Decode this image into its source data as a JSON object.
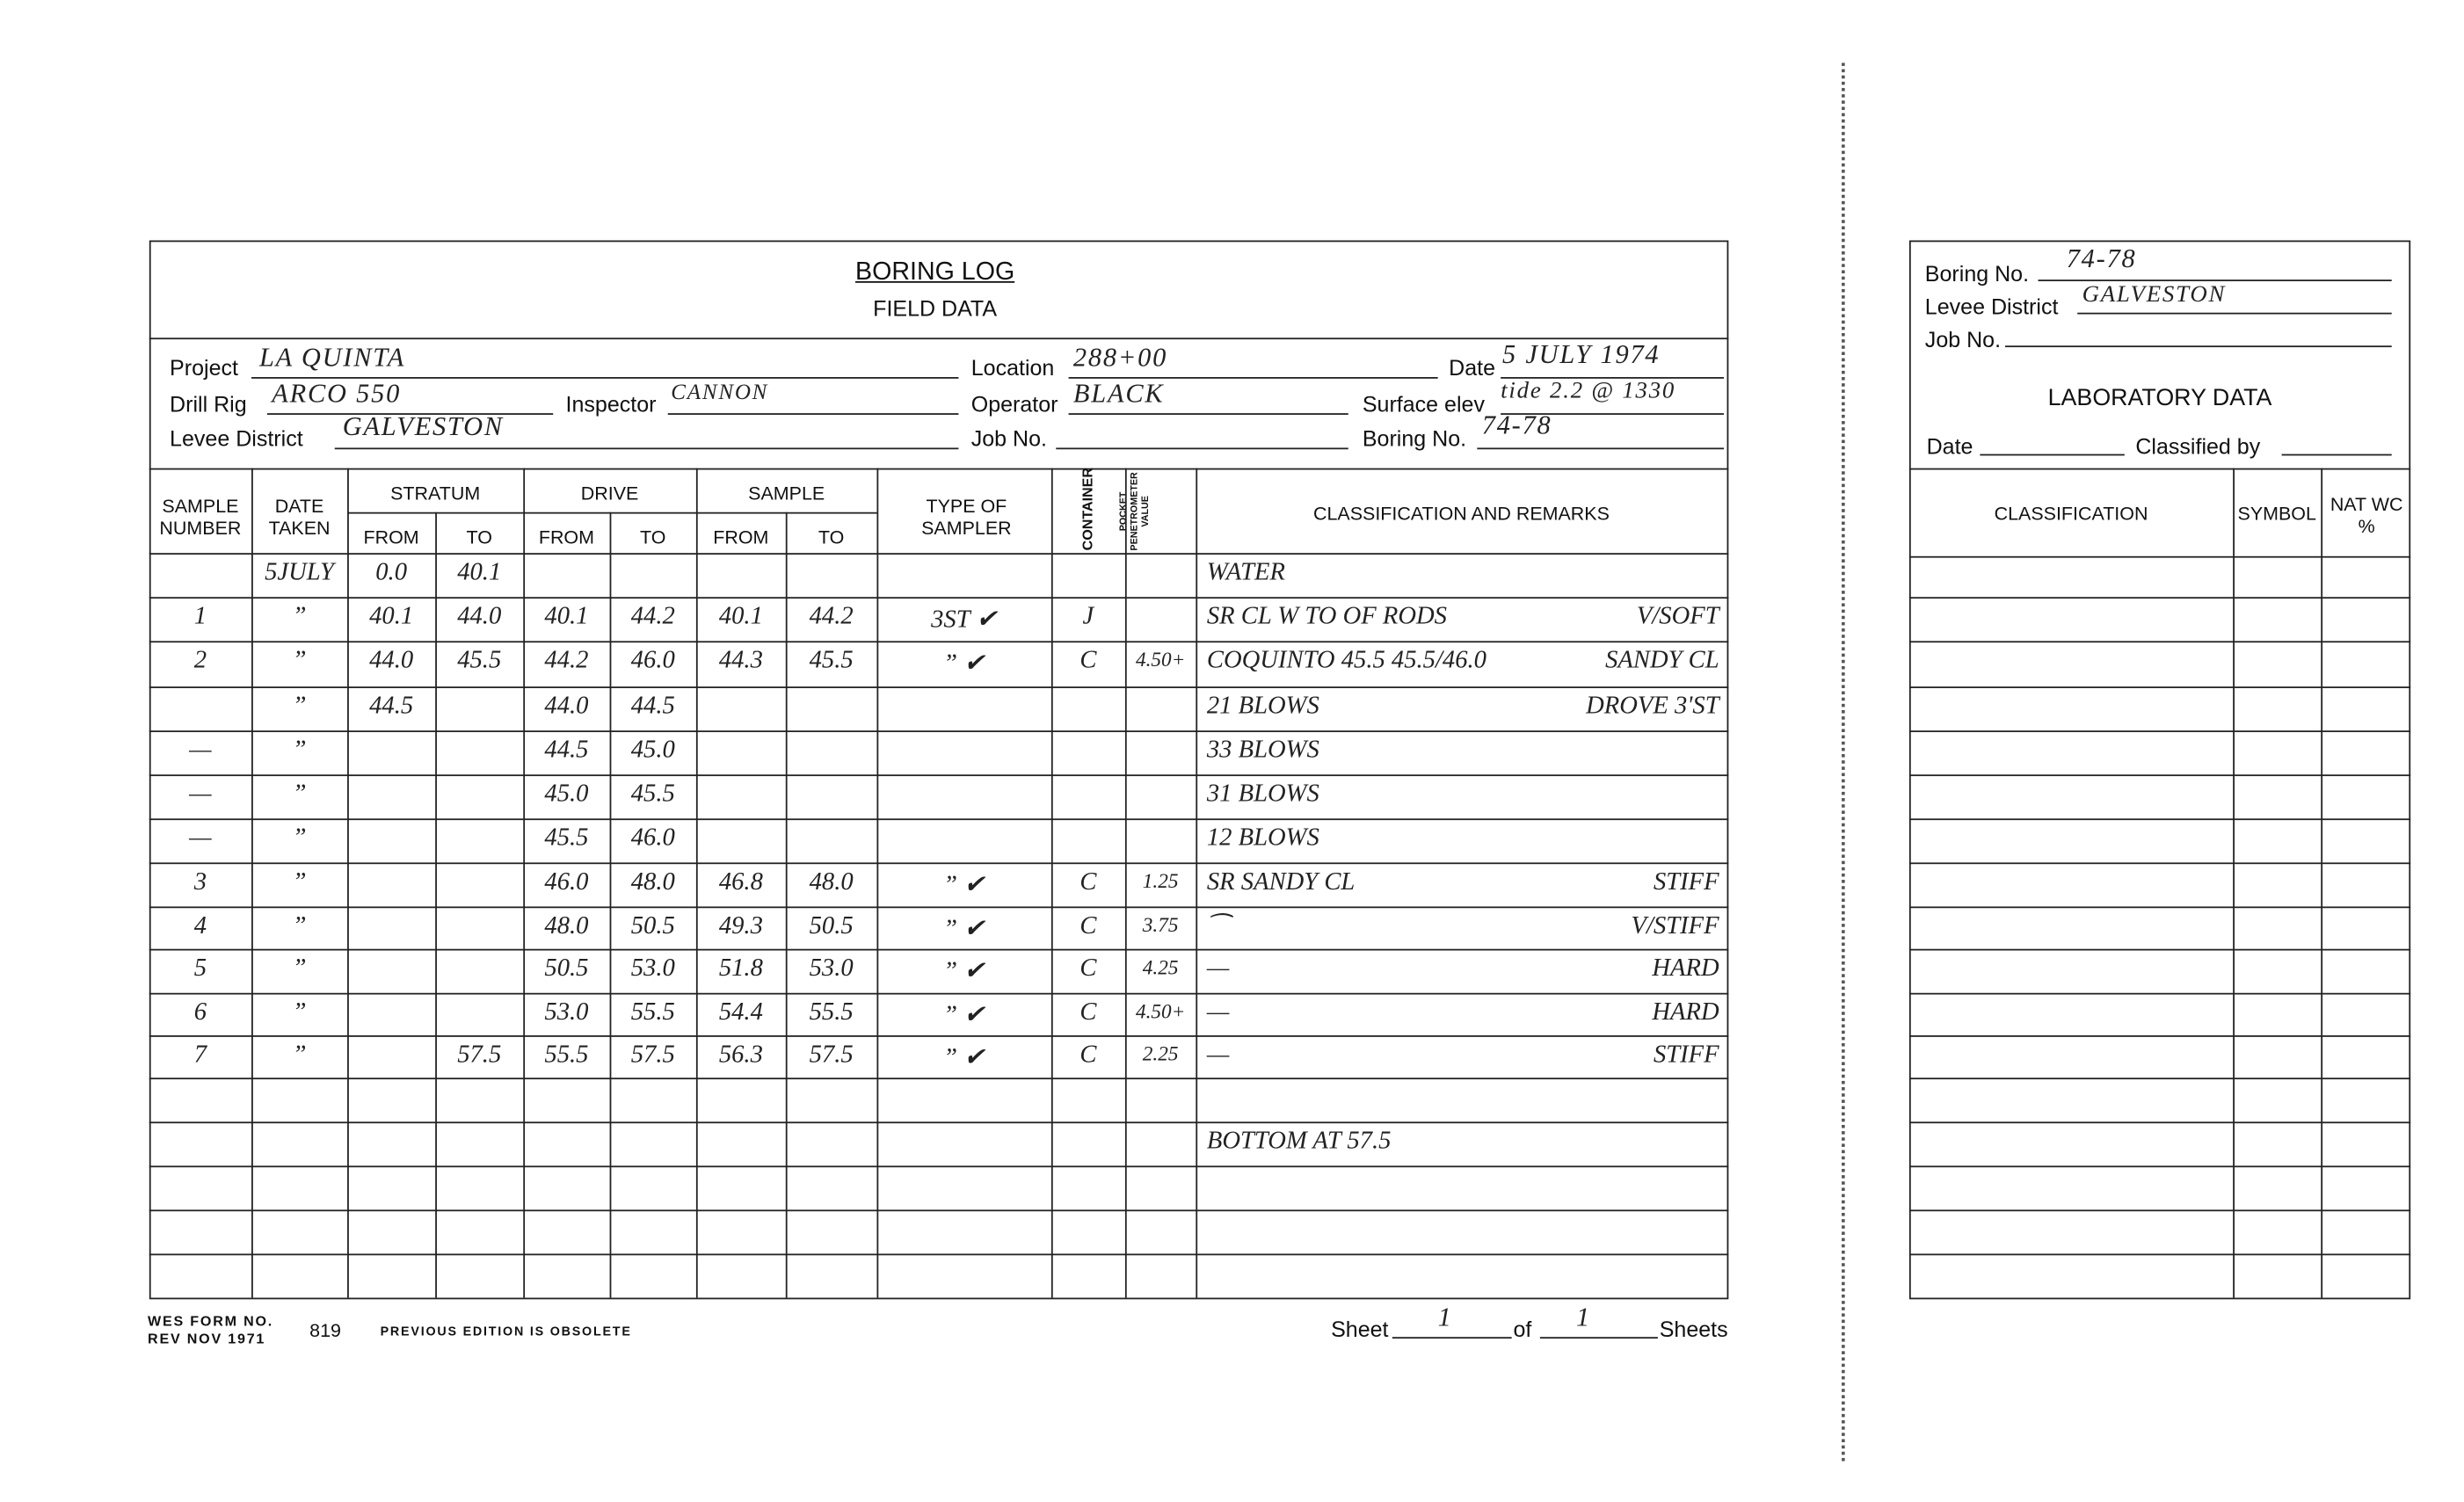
{
  "field": {
    "title": "BORING LOG",
    "subtitle": "FIELD DATA",
    "project_label": "Project",
    "project": "LA QUINTA",
    "location_label": "Location",
    "location": "288+00",
    "date_label": "Date",
    "date": "5 JULY 1974",
    "drill_rig_label": "Drill Rig",
    "drill_rig": "ARCO 550",
    "inspector_label": "Inspector",
    "inspector": "CANNON",
    "operator_label": "Operator",
    "operator": "BLACK",
    "surface_elev_label": "Surface elev",
    "surface_elev": "tide 2.2 @ 1330",
    "levee_label": "Levee District",
    "levee": "GALVESTON",
    "job_label": "Job No.",
    "job": "",
    "boring_label": "Boring No.",
    "boring": "74-78",
    "headers": {
      "sample_number": "SAMPLE NUMBER",
      "date_taken": "DATE TAKEN",
      "stratum": "STRATUM",
      "drive": "DRIVE",
      "sample": "SAMPLE",
      "from": "FROM",
      "to": "TO",
      "type_of_sampler": "TYPE OF SAMPLER",
      "container": "CONTAINER",
      "pocket_pen": "POCKET PENETROMETER VALUE",
      "classification": "CLASSIFICATION AND REMARKS"
    },
    "rows": [
      {
        "c": [
          "",
          "5JULY",
          "0.0",
          "40.1",
          "",
          "",
          "",
          "",
          "",
          "",
          ""
        ],
        "rl": "WATER",
        "rr": ""
      },
      {
        "c": [
          "1",
          "”",
          "40.1",
          "44.0",
          "40.1",
          "44.2",
          "40.1",
          "44.2",
          "3ST ✔",
          "J",
          ""
        ],
        "rl": "SR CL W TO OF RODS",
        "rr": "V/SOFT"
      },
      {
        "c": [
          "2",
          "”",
          "44.0",
          "45.5",
          "44.2",
          "46.0",
          "44.3",
          "45.5",
          "” ✔",
          "C",
          "4.50+"
        ],
        "rl": "COQUINTO 45.5 45.5/46.0",
        "rr": "SANDY CL"
      },
      {
        "c": [
          "",
          "”",
          "44.5",
          "",
          "44.0",
          "44.5",
          "",
          "",
          "",
          "",
          ""
        ],
        "rl": "21 BLOWS",
        "rr": "DROVE 3'ST"
      },
      {
        "c": [
          "—",
          "”",
          "",
          "",
          "44.5",
          "45.0",
          "",
          "",
          "",
          "",
          ""
        ],
        "rl": "33 BLOWS",
        "rr": ""
      },
      {
        "c": [
          "—",
          "”",
          "",
          "",
          "45.0",
          "45.5",
          "",
          "",
          "",
          "",
          ""
        ],
        "rl": "31 BLOWS",
        "rr": ""
      },
      {
        "c": [
          "—",
          "”",
          "",
          "",
          "45.5",
          "46.0",
          "",
          "",
          "",
          "",
          ""
        ],
        "rl": "12 BLOWS",
        "rr": ""
      },
      {
        "c": [
          "3",
          "”",
          "",
          "",
          "46.0",
          "48.0",
          "46.8",
          "48.0",
          "” ✔",
          "C",
          "1.25"
        ],
        "rl": "SR SANDY CL",
        "rr": "STIFF"
      },
      {
        "c": [
          "4",
          "”",
          "",
          "",
          "48.0",
          "50.5",
          "49.3",
          "50.5",
          "” ✔",
          "C",
          "3.75"
        ],
        "rl": "⁀",
        "rr": "V/STIFF"
      },
      {
        "c": [
          "5",
          "”",
          "",
          "",
          "50.5",
          "53.0",
          "51.8",
          "53.0",
          "” ✔",
          "C",
          "4.25"
        ],
        "rl": "—",
        "rr": "HARD"
      },
      {
        "c": [
          "6",
          "”",
          "",
          "",
          "53.0",
          "55.5",
          "54.4",
          "55.5",
          "” ✔",
          "C",
          "4.50+"
        ],
        "rl": "—",
        "rr": "HARD"
      },
      {
        "c": [
          "7",
          "”",
          "",
          "57.5",
          "55.5",
          "57.5",
          "56.3",
          "57.5",
          "” ✔",
          "C",
          "2.25"
        ],
        "rl": "—",
        "rr": "STIFF"
      },
      {
        "c": [
          "",
          "",
          "",
          "",
          "",
          "",
          "",
          "",
          "",
          "",
          ""
        ],
        "rl": "",
        "rr": ""
      },
      {
        "c": [
          "",
          "",
          "",
          "",
          "",
          "",
          "",
          "",
          "",
          "",
          ""
        ],
        "rl": "BOTTOM AT 57.5",
        "rr": ""
      },
      {
        "c": [
          "",
          "",
          "",
          "",
          "",
          "",
          "",
          "",
          "",
          "",
          ""
        ],
        "rl": "",
        "rr": ""
      },
      {
        "c": [
          "",
          "",
          "",
          "",
          "",
          "",
          "",
          "",
          "",
          "",
          ""
        ],
        "rl": "",
        "rr": ""
      },
      {
        "c": [
          "",
          "",
          "",
          "",
          "",
          "",
          "",
          "",
          "",
          "",
          ""
        ],
        "rl": "",
        "rr": ""
      }
    ],
    "footer": {
      "form": "WES FORM NO.",
      "rev": "REV NOV 1971",
      "num": "819",
      "obsolete": "PREVIOUS EDITION IS OBSOLETE",
      "sheet_label": "Sheet",
      "sheet": "1",
      "of_label": "of",
      "of": "1",
      "sheets_label": "Sheets"
    }
  },
  "lab": {
    "boring_label": "Boring No.",
    "boring": "74-78",
    "levee_label": "Levee District",
    "levee": "GALVESTON",
    "job_label": "Job No.",
    "job": "",
    "title": "LABORATORY DATA",
    "date_label": "Date",
    "date": "",
    "classified_label": "Classified by",
    "classified": "",
    "headers": {
      "classification": "CLASSIFICATION",
      "symbol": "SYMBOL",
      "natwc": "NAT WC %"
    }
  }
}
